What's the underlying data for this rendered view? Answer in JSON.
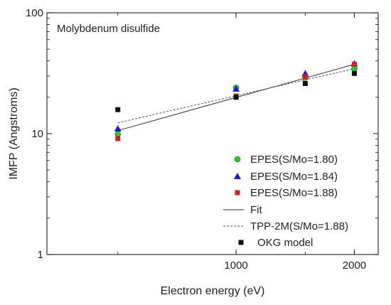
{
  "chart_data": {
    "type": "scatter",
    "title": "Molybdenum disulfide",
    "xlabel": "Electron energy (eV)",
    "ylabel": "IMFP (Angstroms)",
    "xscale": "log",
    "yscale": "log",
    "xlim": [
      330,
      2300
    ],
    "ylim": [
      1,
      100
    ],
    "x_ticks": [
      {
        "value": 1000,
        "label": "1000"
      },
      {
        "value": 2000,
        "label": "2000"
      }
    ],
    "x_minor_ticks": [
      500,
      1500
    ],
    "y_ticks": [
      {
        "value": 1,
        "label": "1"
      },
      {
        "value": 10,
        "label": "10"
      },
      {
        "value": 100,
        "label": "100"
      }
    ],
    "grid": false,
    "legend_position": "bottom-right",
    "series": [
      {
        "name": "EPES(S/Mo=1.80)",
        "marker": "circle",
        "color": "#22cc22",
        "points": [
          [
            500,
            9.9
          ],
          [
            1000,
            24.0
          ],
          [
            1500,
            29.0
          ],
          [
            2000,
            34.5
          ]
        ]
      },
      {
        "name": "EPES(S/Mo=1.84)",
        "marker": "triangle",
        "color": "#1a1acc",
        "points": [
          [
            500,
            11.0
          ],
          [
            1000,
            23.5
          ],
          [
            1500,
            31.5
          ],
          [
            2000,
            38.0
          ]
        ]
      },
      {
        "name": "EPES(S/Mo=1.88)",
        "marker": "square",
        "color": "#cc2222",
        "points": [
          [
            500,
            9.1
          ],
          [
            1000,
            20.5
          ],
          [
            1500,
            29.5
          ],
          [
            2000,
            37.5
          ]
        ]
      },
      {
        "name": "Fit",
        "marker": "line",
        "color": "#333333",
        "points": [
          [
            500,
            10.6
          ],
          [
            2000,
            37.5
          ]
        ]
      },
      {
        "name": "TPP-2M(S/Mo=1.88)",
        "marker": "dashed-line",
        "color": "#555555",
        "points": [
          [
            500,
            12.3
          ],
          [
            2000,
            34.5
          ]
        ]
      },
      {
        "name": "OKG model",
        "marker": "square",
        "color": "#111111",
        "points": [
          [
            500,
            15.8
          ],
          [
            1000,
            20.0
          ],
          [
            1500,
            26.0
          ],
          [
            2000,
            31.5
          ]
        ]
      }
    ]
  }
}
